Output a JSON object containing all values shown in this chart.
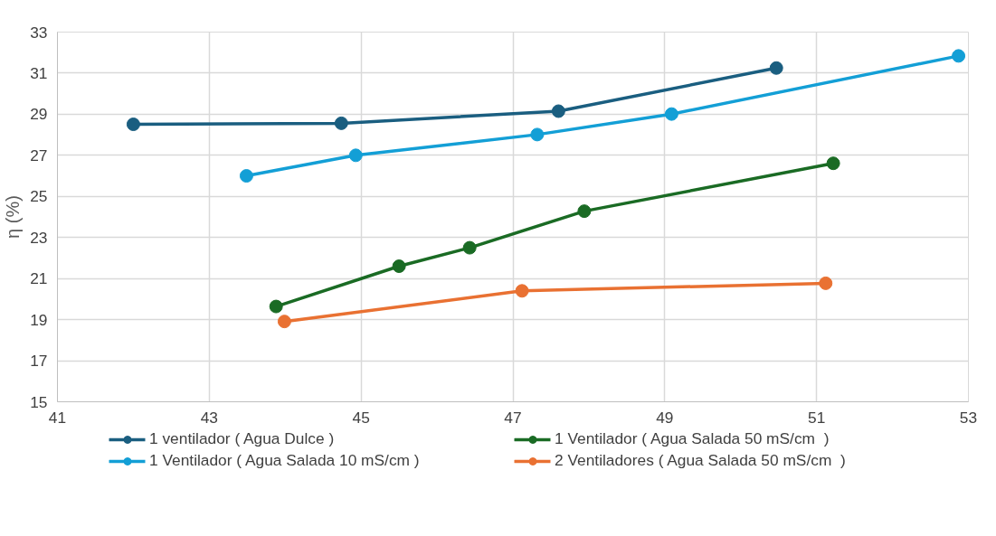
{
  "chart_data": {
    "type": "line",
    "ylabel": "η (%)",
    "xlim": [
      41,
      53
    ],
    "xticks": [
      41,
      43,
      45,
      47,
      49,
      51,
      53
    ],
    "ylim": [
      15,
      33
    ],
    "yticks": [
      15,
      17,
      19,
      21,
      23,
      25,
      27,
      29,
      31,
      33
    ],
    "grid": true,
    "legend": "bottom",
    "marker": "circle",
    "line_style": "solid",
    "series": [
      {
        "name": "1 ventilador ( Agua Dulce )",
        "color": "#1a5e80",
        "x": [
          42.0,
          44.74,
          47.6,
          50.47
        ],
        "values": [
          28.51,
          28.56,
          29.15,
          31.25
        ]
      },
      {
        "name": "1 Ventilador ( Agua Salada 10 mS/cm )",
        "color": "#139fd6",
        "x": [
          43.49,
          44.93,
          47.32,
          49.09,
          52.87
        ],
        "values": [
          26.0,
          27.0,
          28.01,
          29.01,
          31.84
        ]
      },
      {
        "name": "1 Ventilador ( Agua Salada 50 mS/cm  )",
        "color": "#1a6b24",
        "x": [
          43.88,
          45.5,
          46.43,
          47.94,
          51.22
        ],
        "values": [
          19.64,
          21.6,
          22.5,
          24.28,
          26.61
        ]
      },
      {
        "name": "2 Ventiladores ( Agua Salada 50 mS/cm  )",
        "color": "#e97132",
        "x": [
          43.99,
          47.12,
          51.12
        ],
        "values": [
          18.91,
          20.4,
          20.77
        ]
      }
    ]
  }
}
